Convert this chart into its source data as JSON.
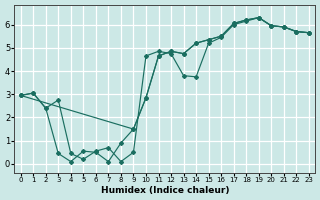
{
  "xlabel": "Humidex (Indice chaleur)",
  "bg_color": "#cce8e6",
  "grid_color": "#ffffff",
  "line_color": "#1a6e60",
  "xlim": [
    -0.5,
    23.5
  ],
  "ylim": [
    -0.4,
    6.85
  ],
  "xticks": [
    0,
    1,
    2,
    3,
    4,
    5,
    6,
    7,
    8,
    9,
    10,
    11,
    12,
    13,
    14,
    15,
    16,
    17,
    18,
    19,
    20,
    21,
    22,
    23
  ],
  "yticks": [
    0,
    1,
    2,
    3,
    4,
    5,
    6
  ],
  "series": [
    {
      "x": [
        0,
        1,
        2,
        3,
        4,
        5,
        6,
        7,
        8,
        9,
        10,
        11,
        12,
        13,
        14,
        15,
        16,
        17,
        18,
        19,
        20,
        21,
        22,
        23
      ],
      "y": [
        2.95,
        3.05,
        2.4,
        2.75,
        0.45,
        0.2,
        0.55,
        0.7,
        0.1,
        0.5,
        4.65,
        4.85,
        4.75,
        3.8,
        3.75,
        5.2,
        5.45,
        6.0,
        6.15,
        6.3,
        5.95,
        5.9,
        5.7,
        5.65
      ]
    },
    {
      "x": [
        0,
        1,
        2,
        3,
        4,
        5,
        6,
        7,
        8,
        9,
        10,
        11,
        12,
        13,
        14,
        15,
        16,
        17,
        18,
        19,
        20,
        21,
        22,
        23
      ],
      "y": [
        2.95,
        3.05,
        2.4,
        0.45,
        0.1,
        0.55,
        0.5,
        0.1,
        0.9,
        1.5,
        2.85,
        4.65,
        4.85,
        4.75,
        5.2,
        5.35,
        5.5,
        6.05,
        6.2,
        6.3,
        5.95,
        5.9,
        5.7,
        5.65
      ]
    },
    {
      "x": [
        0,
        9,
        10,
        11,
        12,
        13,
        14,
        15,
        16,
        17,
        18,
        19,
        20,
        21,
        22,
        23
      ],
      "y": [
        2.95,
        1.5,
        2.85,
        4.65,
        4.85,
        4.75,
        5.2,
        5.35,
        5.5,
        6.05,
        6.2,
        6.3,
        5.95,
        5.9,
        5.7,
        5.65
      ]
    }
  ]
}
